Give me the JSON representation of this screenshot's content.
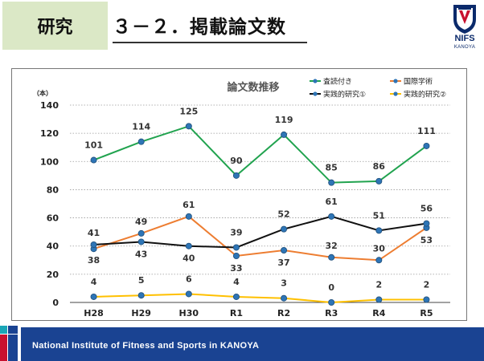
{
  "header": {
    "tag": "研究",
    "title": "３－２．掲載論文数"
  },
  "logo": {
    "name": "NIFS",
    "subtitle": "KANOYA"
  },
  "footer": {
    "text": "National Institute of Fitness and Sports in KANOYA"
  },
  "colors": {
    "tag_bg": "#dbe8c6",
    "footer_bar": "#1a4392",
    "refereed": "#21a34f",
    "international": "#ed7d31",
    "practical_1": "#111111",
    "practical_2": "#ffc000",
    "marker": "#2e75b6"
  },
  "chart_data": {
    "type": "line",
    "title": "論文数推移",
    "ylabel": "（本）",
    "xlabel": "",
    "ylim": [
      0,
      140
    ],
    "yticks": [
      0,
      20,
      40,
      60,
      80,
      100,
      120,
      140
    ],
    "grid": true,
    "legend_position": "top-right",
    "categories": [
      "H28",
      "H29",
      "H30",
      "R1",
      "R2",
      "R3",
      "R4",
      "R5"
    ],
    "series": [
      {
        "name": "査読付き",
        "values": [
          101,
          114,
          125,
          90,
          119,
          85,
          86,
          111
        ]
      },
      {
        "name": "国際学術",
        "values": [
          38,
          49,
          61,
          33,
          37,
          32,
          30,
          53
        ]
      },
      {
        "name": "実践的研究①",
        "values": [
          41,
          43,
          40,
          39,
          52,
          61,
          51,
          56
        ]
      },
      {
        "name": "実践的研究②",
        "values": [
          4,
          5,
          6,
          4,
          3,
          0,
          2,
          2
        ]
      }
    ]
  }
}
